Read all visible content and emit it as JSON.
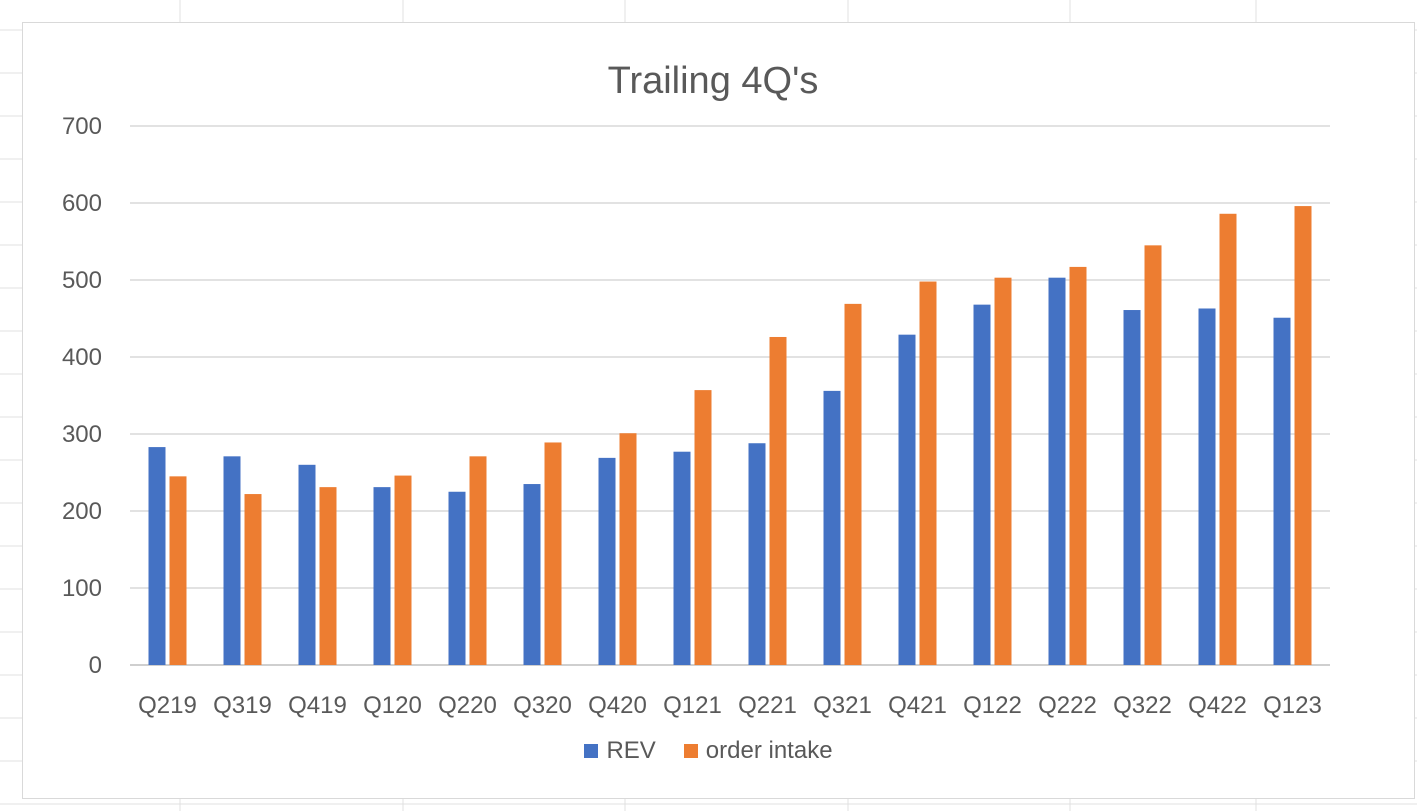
{
  "chart_data": {
    "type": "bar",
    "title": "Trailing 4Q's",
    "xlabel": "",
    "ylabel": "",
    "ylim": [
      0,
      700
    ],
    "yticks": [
      0,
      100,
      200,
      300,
      400,
      500,
      600,
      700
    ],
    "grid": true,
    "legend_position": "bottom",
    "categories": [
      "Q219",
      "Q319",
      "Q419",
      "Q120",
      "Q220",
      "Q320",
      "Q420",
      "Q121",
      "Q221",
      "Q321",
      "Q421",
      "Q122",
      "Q222",
      "Q322",
      "Q422",
      "Q123"
    ],
    "series": [
      {
        "name": "REV",
        "color": "#4472C4",
        "values": [
          283,
          271,
          260,
          231,
          225,
          235,
          269,
          277,
          288,
          356,
          429,
          468,
          503,
          461,
          463,
          451
        ]
      },
      {
        "name": "order intake",
        "color": "#ED7D31",
        "values": [
          245,
          222,
          231,
          246,
          271,
          289,
          301,
          357,
          426,
          469,
          498,
          503,
          517,
          545,
          586,
          596
        ]
      }
    ]
  }
}
